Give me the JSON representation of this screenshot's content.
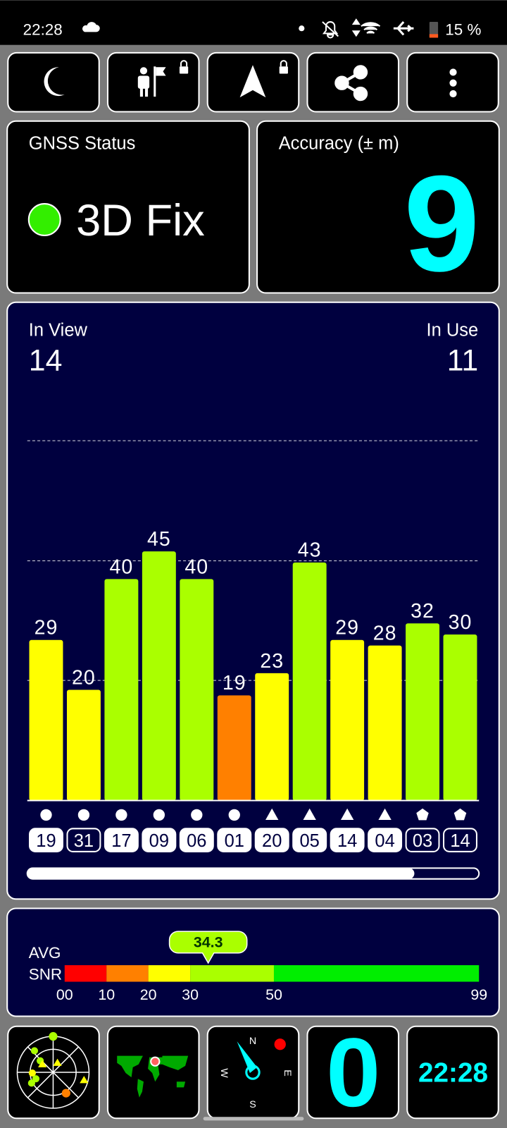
{
  "status_bar": {
    "time": "22:28",
    "battery": "15 %"
  },
  "gnss_status": {
    "title": "GNSS Status",
    "fix": "3D Fix"
  },
  "accuracy": {
    "title": "Accuracy (± m)",
    "value": 9
  },
  "satellites": {
    "in_view_label": "In View",
    "in_view": 14,
    "in_use_label": "In Use",
    "in_use": 11
  },
  "chart_data": {
    "type": "bar",
    "categories": [
      "19",
      "31",
      "17",
      "09",
      "06",
      "01",
      "20",
      "05",
      "14",
      "04",
      "03",
      "14"
    ],
    "values": [
      29,
      20,
      40,
      45,
      40,
      19,
      23,
      43,
      29,
      28,
      32,
      30
    ],
    "colors": [
      "#ffff00",
      "#ffff00",
      "#aaff00",
      "#aaff00",
      "#aaff00",
      "#ff8000",
      "#ffff00",
      "#aaff00",
      "#ffff00",
      "#ffff00",
      "#aaff00",
      "#aaff00"
    ],
    "markers": [
      "circle",
      "circle",
      "circle",
      "circle",
      "circle",
      "circle",
      "triangle",
      "triangle",
      "triangle",
      "triangle",
      "pentagon",
      "pentagon"
    ],
    "used": [
      true,
      false,
      true,
      true,
      true,
      true,
      true,
      true,
      true,
      true,
      false,
      false
    ],
    "ylim": [
      0,
      65
    ],
    "gridlines": [
      21.7,
      43.3,
      65
    ],
    "grid": true
  },
  "avg_snr": {
    "label_1": "AVG",
    "label_2": "SNR",
    "value": 34.3,
    "color": "#aaff00",
    "xlim": [
      0,
      99
    ],
    "xticks": [
      {
        "value": 0,
        "label": "00"
      },
      10,
      20,
      30,
      50,
      99
    ],
    "band_colors": [
      "#ff0000",
      "#ff8000",
      "#ffff00",
      "#aaff00",
      "#00ee00"
    ]
  },
  "footer": {
    "compass": {
      "n": "N",
      "e": "E",
      "s": "S",
      "w": "W"
    },
    "speed": 0,
    "clock": "22:28"
  }
}
